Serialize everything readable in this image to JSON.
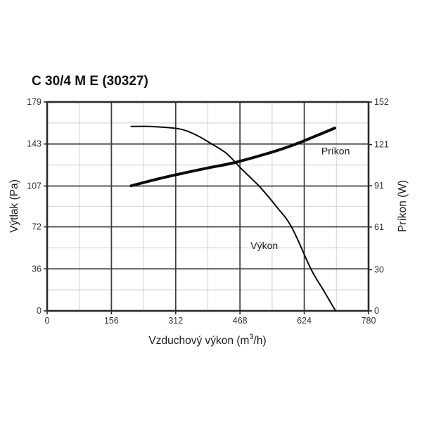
{
  "title": "C 30/4 M E (30327)",
  "colors": {
    "background": "#ffffff",
    "axis_frame": "#2b2b2b",
    "grid_major": "#404040",
    "grid_minor": "#d9d9d9",
    "curve": "#0a0a0a",
    "text": "#1c1c1c"
  },
  "chart_data": {
    "type": "line",
    "title": "C 30/4 M E (30327)",
    "xlabel": "Vzduchový výkon (m³/h)",
    "xlabel_parts": {
      "pre": "Vzduchový výkon (m",
      "sup": "3",
      "post": "/h)"
    },
    "xlim": [
      0,
      780
    ],
    "x_ticks": [
      0,
      156,
      312,
      468,
      624,
      780
    ],
    "left_axis": {
      "title": "Výtlak (Pa)",
      "lim": [
        0,
        179
      ],
      "ticks": [
        0,
        36,
        72,
        107,
        143,
        179
      ]
    },
    "right_axis": {
      "title": "Príkon (W)",
      "lim": [
        0,
        152
      ],
      "ticks": [
        0,
        30,
        61,
        91,
        121,
        152
      ]
    },
    "grid": {
      "major": true,
      "minor": "midpoints",
      "legend": "in-plot labels"
    },
    "series": [
      {
        "name": "Výkon",
        "axis": "left",
        "unit": "Pa",
        "stroke_width": 2,
        "label_anchor": [
          527,
          53
        ],
        "points": [
          [
            204,
            158
          ],
          [
            250,
            158
          ],
          [
            320,
            156
          ],
          [
            360,
            151
          ],
          [
            395,
            144
          ],
          [
            435,
            135
          ],
          [
            468,
            123
          ],
          [
            500,
            112
          ],
          [
            517,
            106
          ],
          [
            555,
            90
          ],
          [
            593,
            72
          ],
          [
            640,
            36
          ],
          [
            670,
            18
          ],
          [
            700,
            0
          ]
        ]
      },
      {
        "name": "Príkon",
        "axis": "right",
        "unit": "W",
        "stroke_width": 4,
        "label_anchor": [
          700,
          114
        ],
        "points": [
          [
            204,
            91
          ],
          [
            255,
            95
          ],
          [
            312,
            99
          ],
          [
            390,
            104
          ],
          [
            456,
            108
          ],
          [
            540,
            115
          ],
          [
            600,
            121
          ],
          [
            650,
            127
          ],
          [
            698,
            133
          ]
        ]
      }
    ]
  }
}
